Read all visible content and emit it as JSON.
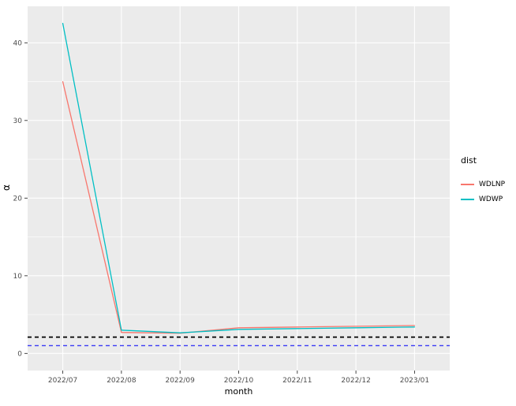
{
  "figure": {
    "background": "#FFFFFF",
    "panel_background": "#EBEBEB",
    "grid_color": "#FFFFFF",
    "tick_color": "#333333",
    "tick_label_color": "#4D4D4D"
  },
  "legend": {
    "title": "dist"
  },
  "chart_data": {
    "type": "line",
    "title": "",
    "xlabel": "month",
    "ylabel": "α",
    "categories": [
      "2022/07",
      "2022/08",
      "2022/09",
      "2022/10",
      "2022/11",
      "2022/12",
      "2023/01"
    ],
    "series": [
      {
        "name": "WDLNP",
        "color": "#F8766D",
        "values": [
          35.0,
          2.7,
          2.6,
          3.3,
          3.4,
          3.5,
          3.6
        ]
      },
      {
        "name": "WDWP",
        "color": "#00BFC4",
        "values": [
          42.5,
          3.0,
          2.65,
          3.1,
          3.2,
          3.3,
          3.4
        ]
      }
    ],
    "reference_lines": [
      {
        "value": 2.1,
        "color": "#000000",
        "style": "dashed",
        "width": 1.8
      },
      {
        "value": 1.0,
        "color": "#3A3AF5",
        "style": "dashed",
        "width": 1.4
      }
    ],
    "y_ticks": [
      0,
      10,
      20,
      30,
      40
    ],
    "y_minor_ticks": [
      5,
      15,
      25,
      35
    ],
    "ylim": [
      -2.2,
      44.7
    ],
    "grid": true,
    "legend_position": "right"
  }
}
